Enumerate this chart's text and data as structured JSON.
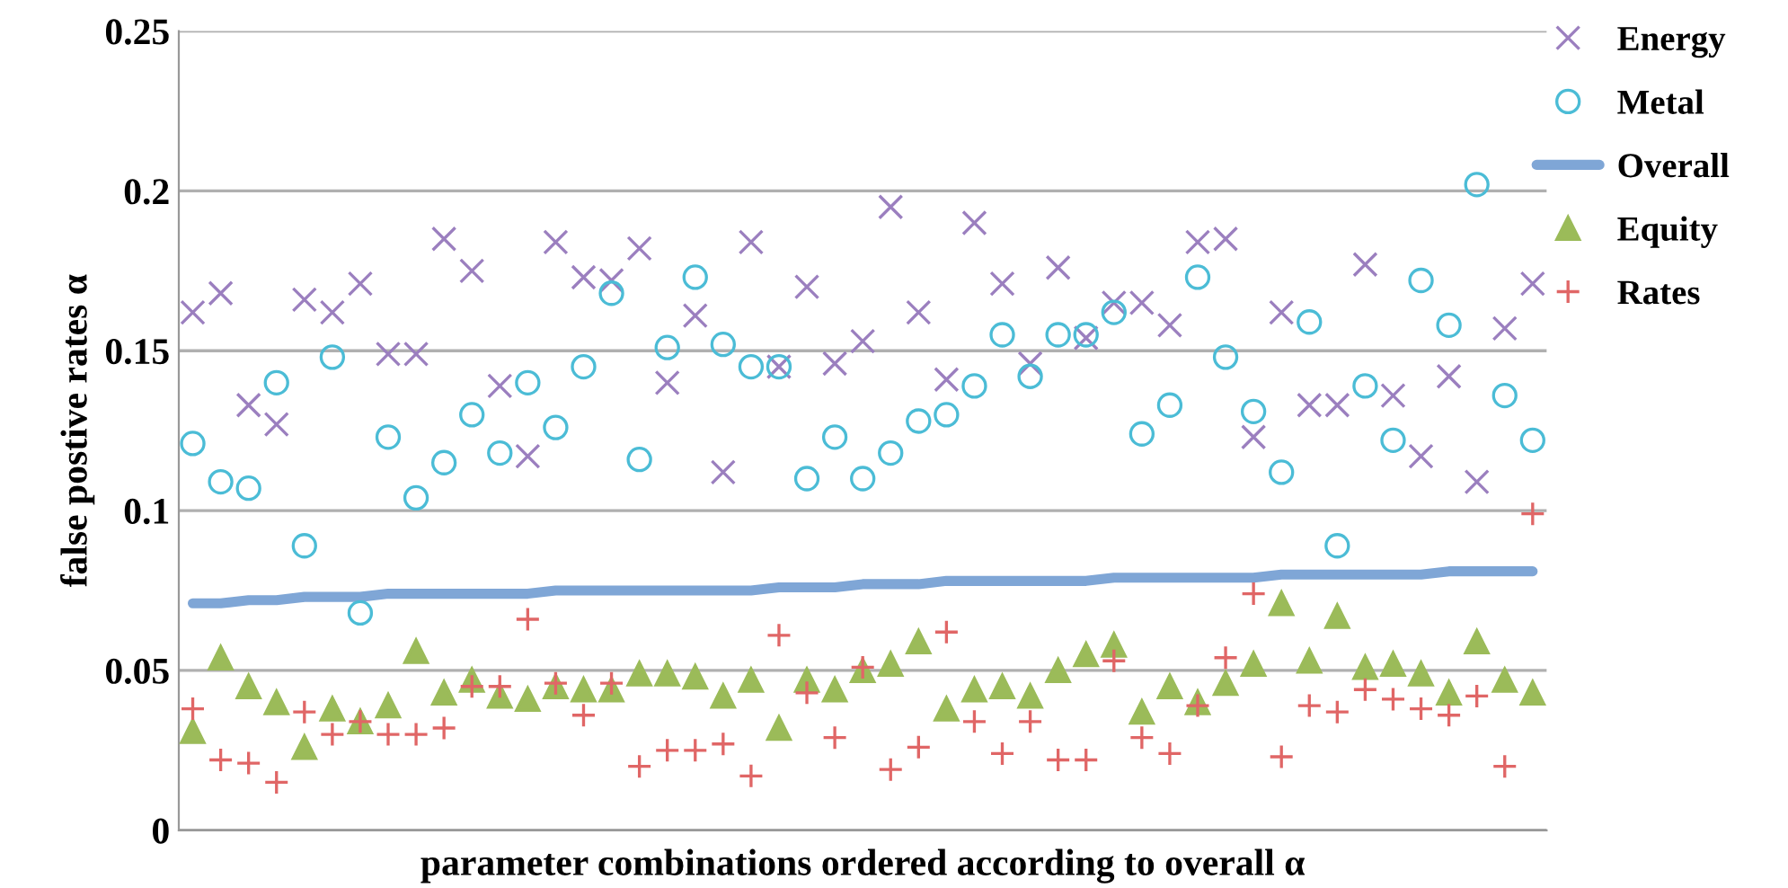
{
  "chart_data": {
    "type": "scatter",
    "xlabel": "parameter combinations ordered according to overall α",
    "ylabel": "false postive rates α",
    "categories": [
      null,
      null,
      null,
      null,
      null,
      null,
      null,
      null,
      null,
      null,
      null,
      null,
      null,
      null,
      null,
      null,
      null,
      null,
      null,
      null,
      null,
      null,
      null,
      null,
      null,
      null,
      null,
      null,
      null,
      null,
      null,
      null,
      null,
      null,
      null,
      null,
      null,
      null,
      null,
      null,
      null,
      null,
      null,
      null,
      null,
      null,
      null,
      null,
      null
    ],
    "ylim": [
      0,
      0.25
    ],
    "yticks": [
      {
        "value": 0,
        "label": "0"
      },
      0.05,
      0.1,
      0.15,
      0.2,
      0.25
    ],
    "grid": "y",
    "legend": "right",
    "series": [
      {
        "name": "Energy",
        "color": "#9b7fbf",
        "marker": "cross",
        "values": [
          0.162,
          0.168,
          0.133,
          0.127,
          0.166,
          0.162,
          0.171,
          0.149,
          0.149,
          0.185,
          0.175,
          0.139,
          0.117,
          0.184,
          0.173,
          0.172,
          0.182,
          0.14,
          0.161,
          0.112,
          0.184,
          0.145,
          0.17,
          0.146,
          0.153,
          0.195,
          0.162,
          0.141,
          0.19,
          0.171,
          0.146,
          0.176,
          0.154,
          0.165,
          0.165,
          0.158,
          0.184,
          0.185,
          0.123,
          0.162,
          0.133,
          0.133,
          0.177,
          0.136,
          0.117,
          0.142,
          0.109,
          0.157,
          0.171
        ]
      },
      {
        "name": "Metal",
        "color": "#4bbcd6",
        "marker": "circle",
        "values": [
          0.121,
          0.109,
          0.107,
          0.14,
          0.089,
          0.148,
          0.068,
          0.123,
          0.104,
          0.115,
          0.13,
          0.118,
          0.14,
          0.126,
          0.145,
          0.168,
          0.116,
          0.151,
          0.173,
          0.152,
          0.145,
          0.145,
          0.11,
          0.123,
          0.11,
          0.118,
          0.128,
          0.13,
          0.139,
          0.155,
          0.142,
          0.155,
          0.155,
          0.162,
          0.124,
          0.133,
          0.173,
          0.148,
          0.131,
          0.112,
          0.159,
          0.089,
          0.139,
          0.122,
          0.172,
          0.158,
          0.202,
          0.136,
          0.122
        ]
      },
      {
        "name": "Overall",
        "color": "#7fa6d6",
        "type": "line",
        "marker": "none",
        "values": [
          0.071,
          0.071,
          0.072,
          0.072,
          0.073,
          0.073,
          0.073,
          0.074,
          0.074,
          0.074,
          0.074,
          0.074,
          0.074,
          0.075,
          0.075,
          0.075,
          0.075,
          0.075,
          0.075,
          0.075,
          0.075,
          0.076,
          0.076,
          0.076,
          0.077,
          0.077,
          0.077,
          0.078,
          0.078,
          0.078,
          0.078,
          0.078,
          0.078,
          0.079,
          0.079,
          0.079,
          0.079,
          0.079,
          0.079,
          0.08,
          0.08,
          0.08,
          0.08,
          0.08,
          0.08,
          0.081,
          0.081,
          0.081,
          0.081
        ]
      },
      {
        "name": "Equity",
        "color": "#9bbb59",
        "marker": "triangle",
        "values": [
          0.031,
          0.054,
          0.045,
          0.04,
          0.026,
          0.038,
          0.034,
          0.039,
          0.056,
          0.043,
          0.047,
          0.042,
          0.041,
          0.045,
          0.044,
          0.044,
          0.049,
          0.049,
          0.048,
          0.042,
          0.047,
          0.032,
          0.047,
          0.044,
          0.05,
          0.052,
          0.059,
          0.038,
          0.044,
          0.045,
          0.042,
          0.05,
          0.055,
          0.058,
          0.037,
          0.045,
          0.04,
          0.046,
          0.052,
          0.071,
          0.053,
          0.067,
          0.051,
          0.052,
          0.049,
          0.043,
          0.059,
          0.047,
          0.043
        ]
      },
      {
        "name": "Rates",
        "color": "#e06666",
        "marker": "plus",
        "values": [
          0.038,
          0.022,
          0.021,
          0.015,
          0.037,
          0.03,
          0.034,
          0.03,
          0.03,
          0.032,
          0.045,
          0.045,
          0.066,
          0.046,
          0.036,
          0.046,
          0.02,
          0.025,
          0.025,
          0.027,
          0.017,
          0.061,
          0.043,
          0.029,
          0.051,
          0.019,
          0.026,
          0.062,
          0.034,
          0.024,
          0.034,
          0.022,
          0.022,
          0.053,
          0.029,
          0.024,
          0.039,
          0.054,
          0.074,
          0.023,
          0.039,
          0.037,
          0.044,
          0.041,
          0.038,
          0.036,
          0.042,
          0.02,
          0.099
        ]
      }
    ]
  }
}
